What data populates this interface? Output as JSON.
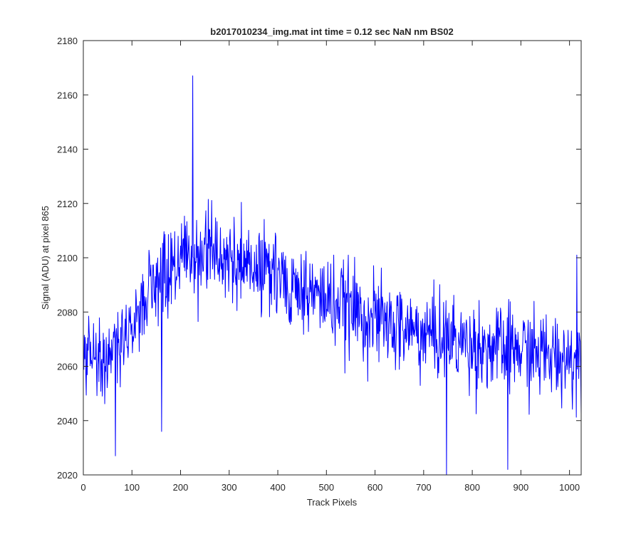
{
  "chart_data": {
    "type": "line",
    "title": "b2017010234_img.mat int time = 0.12 sec  NaN nm BS02",
    "xlabel": "Track Pixels",
    "ylabel": "Signal (ADU) at pixel 865",
    "xlim": [
      0,
      1024
    ],
    "ylim": [
      2020,
      2180
    ],
    "xticks": [
      0,
      100,
      200,
      300,
      400,
      500,
      600,
      700,
      800,
      900,
      1000
    ],
    "yticks": [
      2020,
      2040,
      2060,
      2080,
      2100,
      2120,
      2140,
      2160,
      2180
    ],
    "grid": false,
    "line_color": "#0000ff",
    "series": [
      {
        "trend": {
          "x": [
            0,
            50,
            100,
            150,
            200,
            250,
            300,
            350,
            400,
            450,
            500,
            550,
            600,
            650,
            700,
            750,
            800,
            850,
            900,
            950,
            1024
          ],
          "y": [
            2063,
            2065,
            2075,
            2090,
            2100,
            2103,
            2100,
            2096,
            2092,
            2088,
            2085,
            2081,
            2077,
            2074,
            2072,
            2070,
            2068,
            2066,
            2066,
            2064,
            2063
          ]
        },
        "noise_amplitude": 13,
        "notable_points": [
          {
            "x": 66,
            "y": 2027
          },
          {
            "x": 161,
            "y": 2036
          },
          {
            "x": 225,
            "y": 2167
          },
          {
            "x": 747,
            "y": 2020
          },
          {
            "x": 873,
            "y": 2022
          },
          {
            "x": 1015,
            "y": 2101
          }
        ]
      }
    ]
  }
}
